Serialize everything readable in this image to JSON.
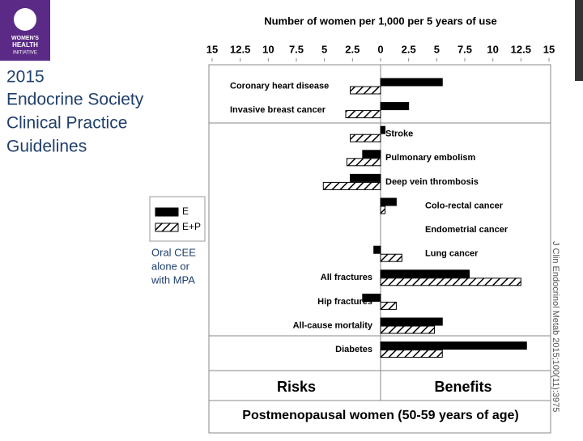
{
  "logo": {
    "lines": [
      "WOMEN'S",
      "HEALTH",
      "INITIATIVE"
    ]
  },
  "heading": [
    "2015",
    "Endocrine Society",
    "Clinical Practice",
    "Guidelines"
  ],
  "note": [
    "Oral CEE",
    "alone or",
    "with MPA"
  ],
  "citation": "J Clin Endocrinol Metab 2015;100(11):3975",
  "chart_data": {
    "type": "bar",
    "orientation": "horizontal",
    "title": "Number of women per 1,000 per 5 years of use",
    "categories": [
      "Coronary heart disease",
      "Invasive breast cancer",
      "Stroke",
      "Pulmonary embolism",
      "Deep vein thrombosis",
      "Colo-rectal cancer",
      "Endometrial cancer",
      "Lung cancer",
      "All fractures",
      "Hip fractures",
      "All-cause mortality",
      "Diabetes"
    ],
    "series": [
      {
        "name": "E",
        "color": "#000000",
        "pattern": "solid",
        "values": [
          5.5,
          2.5,
          0.4,
          -1.6,
          -2.7,
          1.4,
          null,
          -0.6,
          7.9,
          -1.6,
          5.5,
          13
        ]
      },
      {
        "name": "E+P",
        "color": "#000000",
        "pattern": "hatch",
        "values": [
          -2.7,
          -3.1,
          -2.7,
          -3,
          -5.1,
          0.4,
          null,
          1.9,
          12.5,
          1.4,
          4.8,
          5.5
        ]
      }
    ],
    "xlim": [
      -15,
      15
    ],
    "xticks": [
      {
        "value": -15,
        "label": "15"
      },
      {
        "value": -12.5,
        "label": "12.5"
      },
      {
        "value": -10,
        "label": "10"
      },
      {
        "value": -7.5,
        "label": "7.5"
      },
      {
        "value": -5,
        "label": "5"
      },
      {
        "value": -2.5,
        "label": "2.5"
      },
      0,
      2.5,
      5,
      7.5,
      10,
      12.5,
      15
    ],
    "left_label": "Risks",
    "right_label": "Benefits",
    "footer": "Postmenopausal women (50-59 years of age)"
  }
}
